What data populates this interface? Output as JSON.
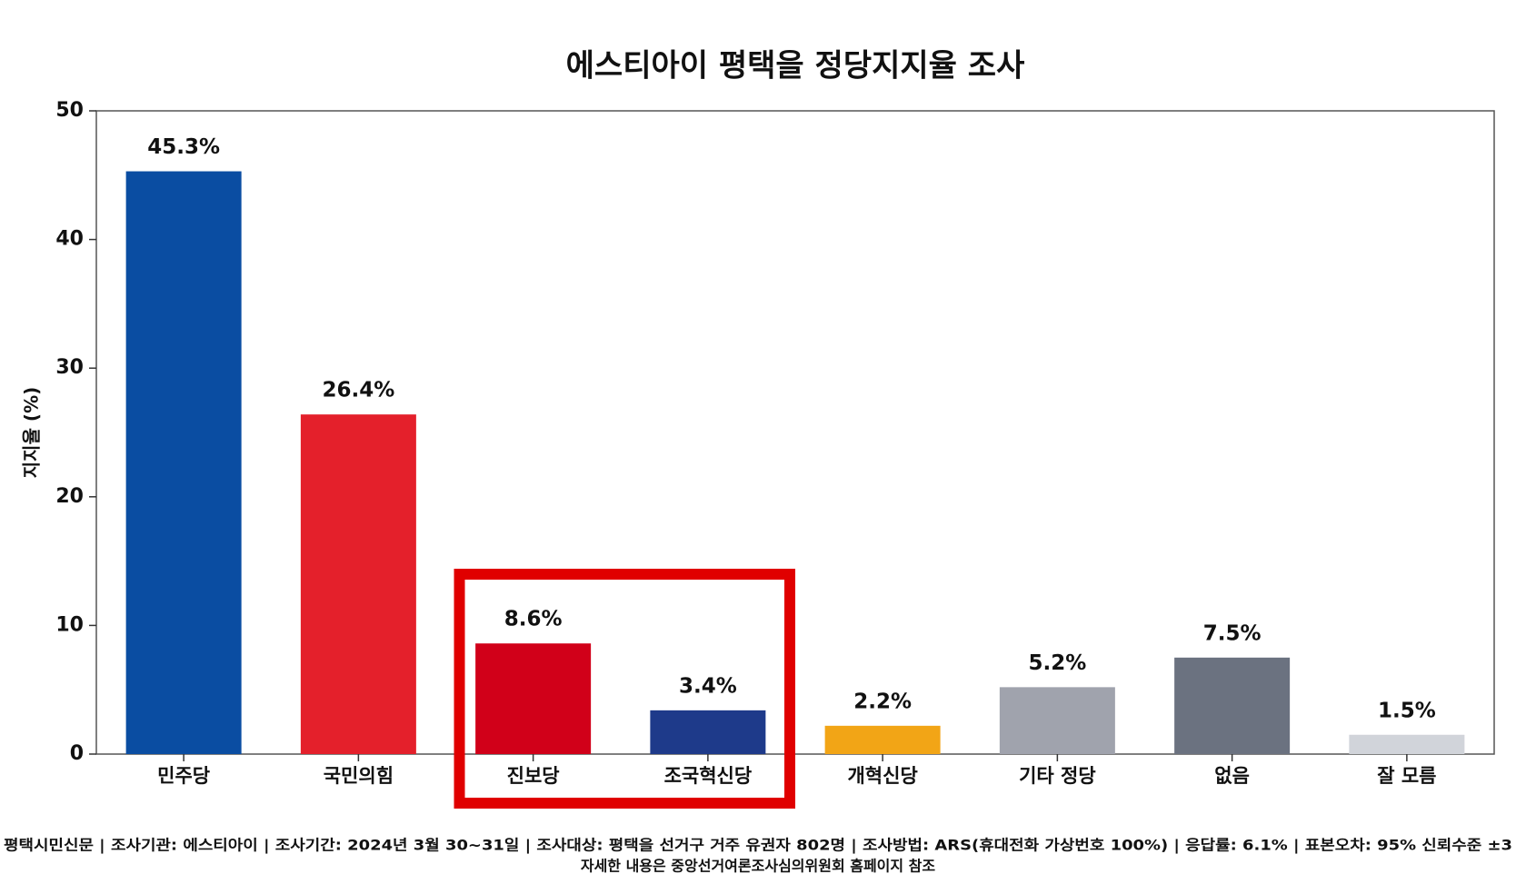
{
  "chart_data": {
    "type": "bar",
    "title": "에스티아이 평택을 정당지지율 조사",
    "ylabel": "지지율 (%)",
    "categories": [
      "민주당",
      "국민의힘",
      "진보당",
      "조국혁신당",
      "개혁신당",
      "기타 정당",
      "없음",
      "잘 모름"
    ],
    "values": [
      45.3,
      26.4,
      8.6,
      3.4,
      2.2,
      5.2,
      7.5,
      1.5
    ],
    "value_labels": [
      "45.3%",
      "26.4%",
      "8.6%",
      "3.4%",
      "2.2%",
      "5.2%",
      "7.5%",
      "1.5%"
    ],
    "colors": [
      "#0a4da2",
      "#e4202b",
      "#d10019",
      "#1e3a8a",
      "#f2a516",
      "#a0a3ad",
      "#6b7280",
      "#d1d4da"
    ],
    "ylim": [
      0,
      50
    ],
    "yticks": [
      0,
      10,
      20,
      30,
      40,
      50
    ],
    "grid": false,
    "notes": [
      "평택시민신문 | 조사기관: 에스티아이 | 조사기간: 2024년 3월 30~31일 | 조사대상: 평택을 선거구 거주 유권자 802명 | 조사방법: ARS(휴대전화 가상번호 100%) | 응답률: 6.1% | 표본오차: 95% 신뢰수준 ±3",
      "자세한 내용은 중앙선거여론조사심의위원회 홈페이지 참조"
    ]
  }
}
